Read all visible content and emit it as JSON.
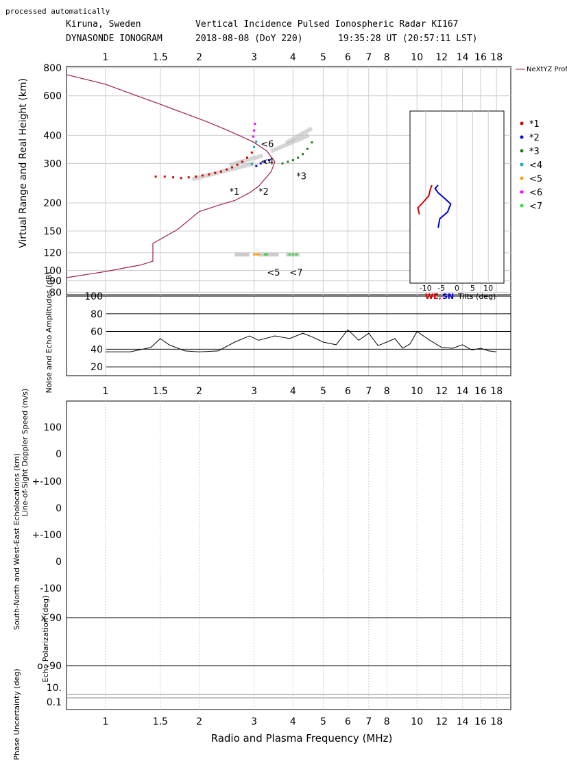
{
  "header": {
    "processed": "processed automatically",
    "station": "Kiruna, Sweden",
    "instrument": "Vertical Incidence Pulsed Ionospheric Radar KI167",
    "product": "DYNASONDE IONOGRAM",
    "date": "2018-08-08 (DoY 220)",
    "time": "19:35:28 UT (20:57:11 LST)"
  },
  "chart_data": [
    {
      "type": "scatter",
      "name": "ionogram",
      "ylabel": "Virtual Range and Real Height (km)",
      "xscale": "log",
      "yscale": "log",
      "xlim": [
        0.75,
        20
      ],
      "ylim": [
        78,
        810
      ],
      "x_ticks": [
        "1",
        "1.5",
        "2",
        "3",
        "4",
        "5",
        "6",
        "7",
        "8",
        "10",
        "12",
        "14",
        "16",
        "18"
      ],
      "x_tick_values": [
        1,
        1.5,
        2,
        3,
        4,
        5,
        6,
        7,
        8,
        10,
        12,
        14,
        16,
        18
      ],
      "y_ticks": [
        "800",
        "600",
        "400",
        "300",
        "200",
        "150",
        "120",
        "100",
        "90",
        "80"
      ],
      "y_tick_values": [
        800,
        600,
        400,
        300,
        200,
        150,
        120,
        100,
        90,
        80
      ],
      "grid": true,
      "legend_placement": "right",
      "legend": {
        "profile_label": "NeXtYZ Profile and Uncertainties",
        "items": [
          {
            "label": "*1",
            "color": "#d40000"
          },
          {
            "label": "*2",
            "color": "#0000d4"
          },
          {
            "label": "*3",
            "color": "#1e7a1e"
          },
          {
            "label": "<4",
            "color": "#1eaaaa"
          },
          {
            "label": "<5",
            "color": "#ff9900"
          },
          {
            "label": "<6",
            "color": "#ff00ff"
          },
          {
            "label": "<7",
            "color": "#33dd33"
          }
        ]
      },
      "annotations": [
        {
          "text": "*1",
          "x": 2.5,
          "y": 218
        },
        {
          "text": "*2",
          "x": 3.1,
          "y": 218
        },
        {
          "text": "*3",
          "x": 4.1,
          "y": 255
        },
        {
          "text": "<6",
          "x": 3.15,
          "y": 355
        },
        {
          "text": "<4",
          "x": 3.15,
          "y": 297
        },
        {
          "text": "<5",
          "x": 3.3,
          "y": 95
        },
        {
          "text": "<7",
          "x": 3.9,
          "y": 95
        }
      ],
      "profile": {
        "x": [
          0.75,
          1.0,
          1.3,
          1.42,
          1.42,
          1.7,
          2.0,
          2.3,
          2.6,
          2.9,
          3.1,
          3.4,
          3.5,
          3.3,
          3.0,
          2.7,
          2.4,
          2.1,
          1.8,
          1.5,
          1.2,
          1.0,
          0.75
        ],
        "y": [
          93,
          99,
          106,
          110,
          132,
          152,
          183,
          195,
          205,
          222,
          237,
          275,
          305,
          340,
          372,
          398,
          428,
          462,
          500,
          550,
          615,
          675,
          745
        ]
      },
      "series": [
        {
          "name": "*1",
          "color": "#d40000",
          "x": [
            1.45,
            1.55,
            1.65,
            1.75,
            1.85,
            1.95,
            2.05,
            2.15,
            2.25,
            2.35,
            2.45,
            2.55,
            2.65,
            2.75,
            2.85,
            2.95
          ],
          "y": [
            262,
            262,
            260,
            258,
            260,
            262,
            265,
            268,
            272,
            276,
            282,
            288,
            296,
            305,
            318,
            335
          ]
        },
        {
          "name": "*2",
          "color": "#0000d4",
          "x": [
            3.05,
            3.15,
            3.25,
            3.35
          ],
          "y": [
            292,
            300,
            305,
            310
          ]
        },
        {
          "name": "*3",
          "color": "#1e7a1e",
          "x": [
            3.7,
            3.85,
            4.0,
            4.15,
            4.3,
            4.45,
            4.6
          ],
          "y": [
            300,
            305,
            310,
            318,
            330,
            348,
            372
          ]
        },
        {
          "name": "<4",
          "color": "#1eaaaa",
          "x": [
            2.95,
            3.0,
            3.05
          ],
          "y": [
            298,
            355,
            375
          ]
        },
        {
          "name": "<5",
          "color": "#ff9900",
          "x": [
            3.0,
            3.05,
            3.1
          ],
          "y": [
            118,
            118,
            118
          ]
        },
        {
          "name": "<6",
          "color": "#ff00ff",
          "x": [
            2.98,
            3.0,
            3.02
          ],
          "y": [
            395,
            420,
            450
          ]
        },
        {
          "name": "<7",
          "color": "#33dd33",
          "x": [
            3.25,
            3.3,
            3.9,
            4.0,
            4.1
          ],
          "y": [
            118,
            118,
            118,
            118,
            118
          ]
        }
      ],
      "tilts": {
        "xlabel_we": "WE,",
        "xlabel_sn": "SN",
        "xlabel_suffix": "Tilts (deg)",
        "x_ticks": [
          "-10",
          "-5",
          "0",
          "5",
          "10"
        ],
        "x_tick_values": [
          -10,
          -5,
          0,
          5,
          10
        ],
        "xlim": [
          -15,
          15
        ],
        "we": {
          "x": [
            -12,
            -12.5,
            -11,
            -9,
            -8.5,
            -8
          ],
          "y": [
            178,
            190,
            200,
            215,
            230,
            240
          ]
        },
        "sn": {
          "x": [
            -6,
            -5.5,
            -3,
            -2,
            -4,
            -6,
            -7,
            -6
          ],
          "y": [
            155,
            170,
            182,
            198,
            210,
            222,
            232,
            240
          ]
        }
      }
    },
    {
      "type": "line",
      "name": "amplitudes",
      "ylabel": "Noise and Echo Amplitudes (dB)",
      "ylim": [
        10,
        100
      ],
      "y_ticks": [
        "100",
        "80",
        "60",
        "40",
        "20"
      ],
      "y_tick_values": [
        100,
        80,
        60,
        40,
        20
      ],
      "noise": {
        "x": [
          1.0,
          1.2,
          1.4,
          1.5,
          1.6,
          1.8,
          2.0,
          2.3,
          2.6,
          2.9,
          3.1,
          3.5,
          3.9,
          4.3,
          4.6,
          5.0,
          5.5,
          6.0,
          6.5,
          7.0,
          7.5,
          8.0,
          8.5,
          9.0,
          9.5,
          10.0,
          11.0,
          12.0,
          13.0,
          14.0,
          15.0,
          16.0,
          17.0,
          18.0
        ],
        "y": [
          37,
          37,
          42,
          52,
          45,
          38,
          37,
          38,
          48,
          55,
          50,
          55,
          52,
          58,
          54,
          48,
          45,
          62,
          50,
          58,
          44,
          48,
          52,
          41,
          46,
          60,
          50,
          42,
          41,
          45,
          39,
          41,
          38,
          37
        ]
      }
    },
    {
      "type": "scatter",
      "name": "echo-parameters",
      "xlabel": "Radio and Plasma Frequency (MHz)",
      "panels": [
        {
          "label": "Line-of-Sight Doppler Speed (m/s)",
          "ticks": [
            "100",
            "0",
            "+-100"
          ]
        },
        {
          "label": "South-North and West-East Echolocations (km)",
          "ticks": [
            "0",
            "+-100",
            "0",
            "-100"
          ]
        },
        {
          "label": "Echo Polarization (deg)",
          "ticks": [
            "x 90",
            "o -90"
          ]
        },
        {
          "label": "Phase Uncertainty (deg)",
          "ticks": [
            "10.",
            "0.1"
          ]
        }
      ]
    }
  ]
}
